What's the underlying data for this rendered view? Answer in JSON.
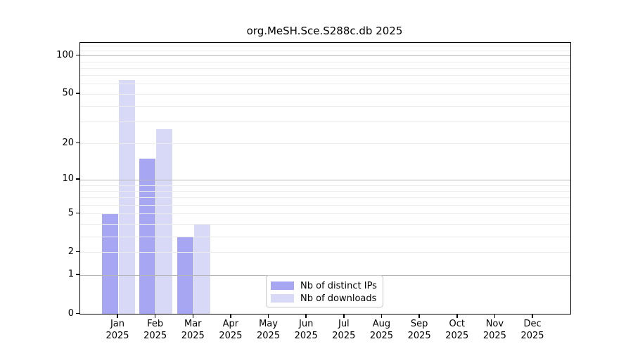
{
  "chart_data": {
    "type": "bar",
    "title": "org.MeSH.Sce.S288c.db 2025",
    "categories": [
      {
        "month": "Jan",
        "year": "2025"
      },
      {
        "month": "Feb",
        "year": "2025"
      },
      {
        "month": "Mar",
        "year": "2025"
      },
      {
        "month": "Apr",
        "year": "2025"
      },
      {
        "month": "May",
        "year": "2025"
      },
      {
        "month": "Jun",
        "year": "2025"
      },
      {
        "month": "Jul",
        "year": "2025"
      },
      {
        "month": "Aug",
        "year": "2025"
      },
      {
        "month": "Sep",
        "year": "2025"
      },
      {
        "month": "Oct",
        "year": "2025"
      },
      {
        "month": "Nov",
        "year": "2025"
      },
      {
        "month": "Dec",
        "year": "2025"
      }
    ],
    "series": [
      {
        "name": "Nb of distinct IPs",
        "color": "#a6a6f2",
        "values": [
          5,
          15,
          3,
          0,
          0,
          0,
          0,
          0,
          0,
          0,
          0,
          0
        ]
      },
      {
        "name": "Nb of downloads",
        "color": "#d8d8f7",
        "values": [
          64,
          26,
          4,
          0,
          0,
          0,
          0,
          0,
          0,
          0,
          0,
          0
        ]
      }
    ],
    "yscale": "log1p",
    "ylim": [
      0,
      126
    ],
    "yticks": [
      0,
      1,
      2,
      5,
      10,
      20,
      50,
      100
    ],
    "grid": {
      "major_values": [
        1,
        10,
        100
      ],
      "minor_values": [
        2,
        3,
        4,
        5,
        6,
        7,
        8,
        9,
        20,
        30,
        40,
        50,
        60,
        70,
        80,
        90,
        110,
        120
      ],
      "major_color": "#b5b5b5",
      "minor_color": "#ececec",
      "grid_on_top_of_bars": true
    },
    "legend_position": "bottom-center-inside",
    "xlabel": "",
    "ylabel": ""
  }
}
